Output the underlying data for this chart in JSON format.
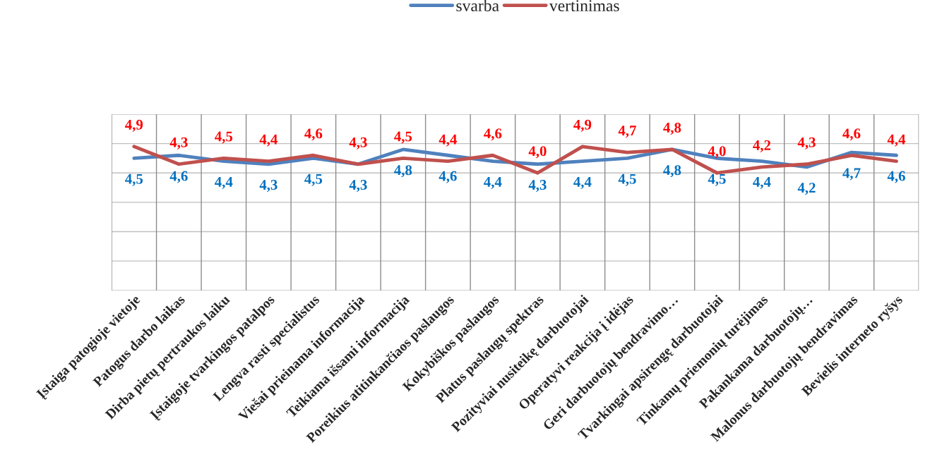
{
  "chart_data": {
    "type": "line",
    "categories": [
      "Įstaiga patogioje vietoje",
      "Patogus darbo laikas",
      "Dirba pietų pertraukos laiku",
      "Įstaigoje tvarkingos patalpos",
      "Lengva rasti specialistus",
      "Viešai prieinama informacija",
      "Teikiama išsami informacija",
      "Poreikius atitinkančiaos paslaugos",
      "Kokybiškos paslaugos",
      "Platus paslaugų spektras",
      "Pozityviai nusiteikę darbuotojai",
      "Operatyvi reakcija į idėjas",
      "Geri darbuotojų bendravimo…",
      "Tvarkingai apsirengę darbuotojai",
      "Tinkamų priemonių turėjimas",
      "Pakankama darbuotojų…",
      "Malonus darbuotojų bendravimas",
      "Bevielis interneto ryšys"
    ],
    "series": [
      {
        "name": "svarba",
        "color": "#4f81bd",
        "values": [
          4.5,
          4.6,
          4.4,
          4.3,
          4.5,
          4.3,
          4.8,
          4.6,
          4.4,
          4.3,
          4.4,
          4.5,
          4.8,
          4.5,
          4.4,
          4.2,
          4.7,
          4.6
        ],
        "value_labels": [
          "4,5",
          "4,6",
          "4,4",
          "4,3",
          "4,5",
          "4,3",
          "4,8",
          "4,6",
          "4,4",
          "4,3",
          "4,4",
          "4,5",
          "4,8",
          "4,5",
          "4,4",
          "4,2",
          "4,7",
          "4,6"
        ]
      },
      {
        "name": "vertinimas",
        "color": "#c0504d",
        "values": [
          4.9,
          4.3,
          4.5,
          4.4,
          4.6,
          4.3,
          4.5,
          4.4,
          4.6,
          4.0,
          4.9,
          4.7,
          4.8,
          4.0,
          4.2,
          4.3,
          4.6,
          4.4
        ],
        "value_labels": [
          "4,9",
          "4,3",
          "4,5",
          "4,4",
          "4,6",
          "4,3",
          "4,5",
          "4,4",
          "4,6",
          "4,0",
          "4,9",
          "4,7",
          "4,8",
          "4,0",
          "4,2",
          "4,3",
          "4,6",
          "4,4"
        ]
      }
    ],
    "ylim": [
      0,
      6
    ],
    "yticks": [
      {
        "value": 0,
        "label": null
      },
      {
        "value": 1,
        "label": null
      },
      {
        "value": 2,
        "label": null
      },
      {
        "value": 3,
        "label": null
      },
      {
        "value": 4,
        "label": null
      },
      {
        "value": 5,
        "label": null
      },
      {
        "value": 6,
        "label": null
      }
    ],
    "tick_labels": "x",
    "grid": true,
    "legend": "top",
    "marker": "none",
    "line_style": "solid"
  }
}
